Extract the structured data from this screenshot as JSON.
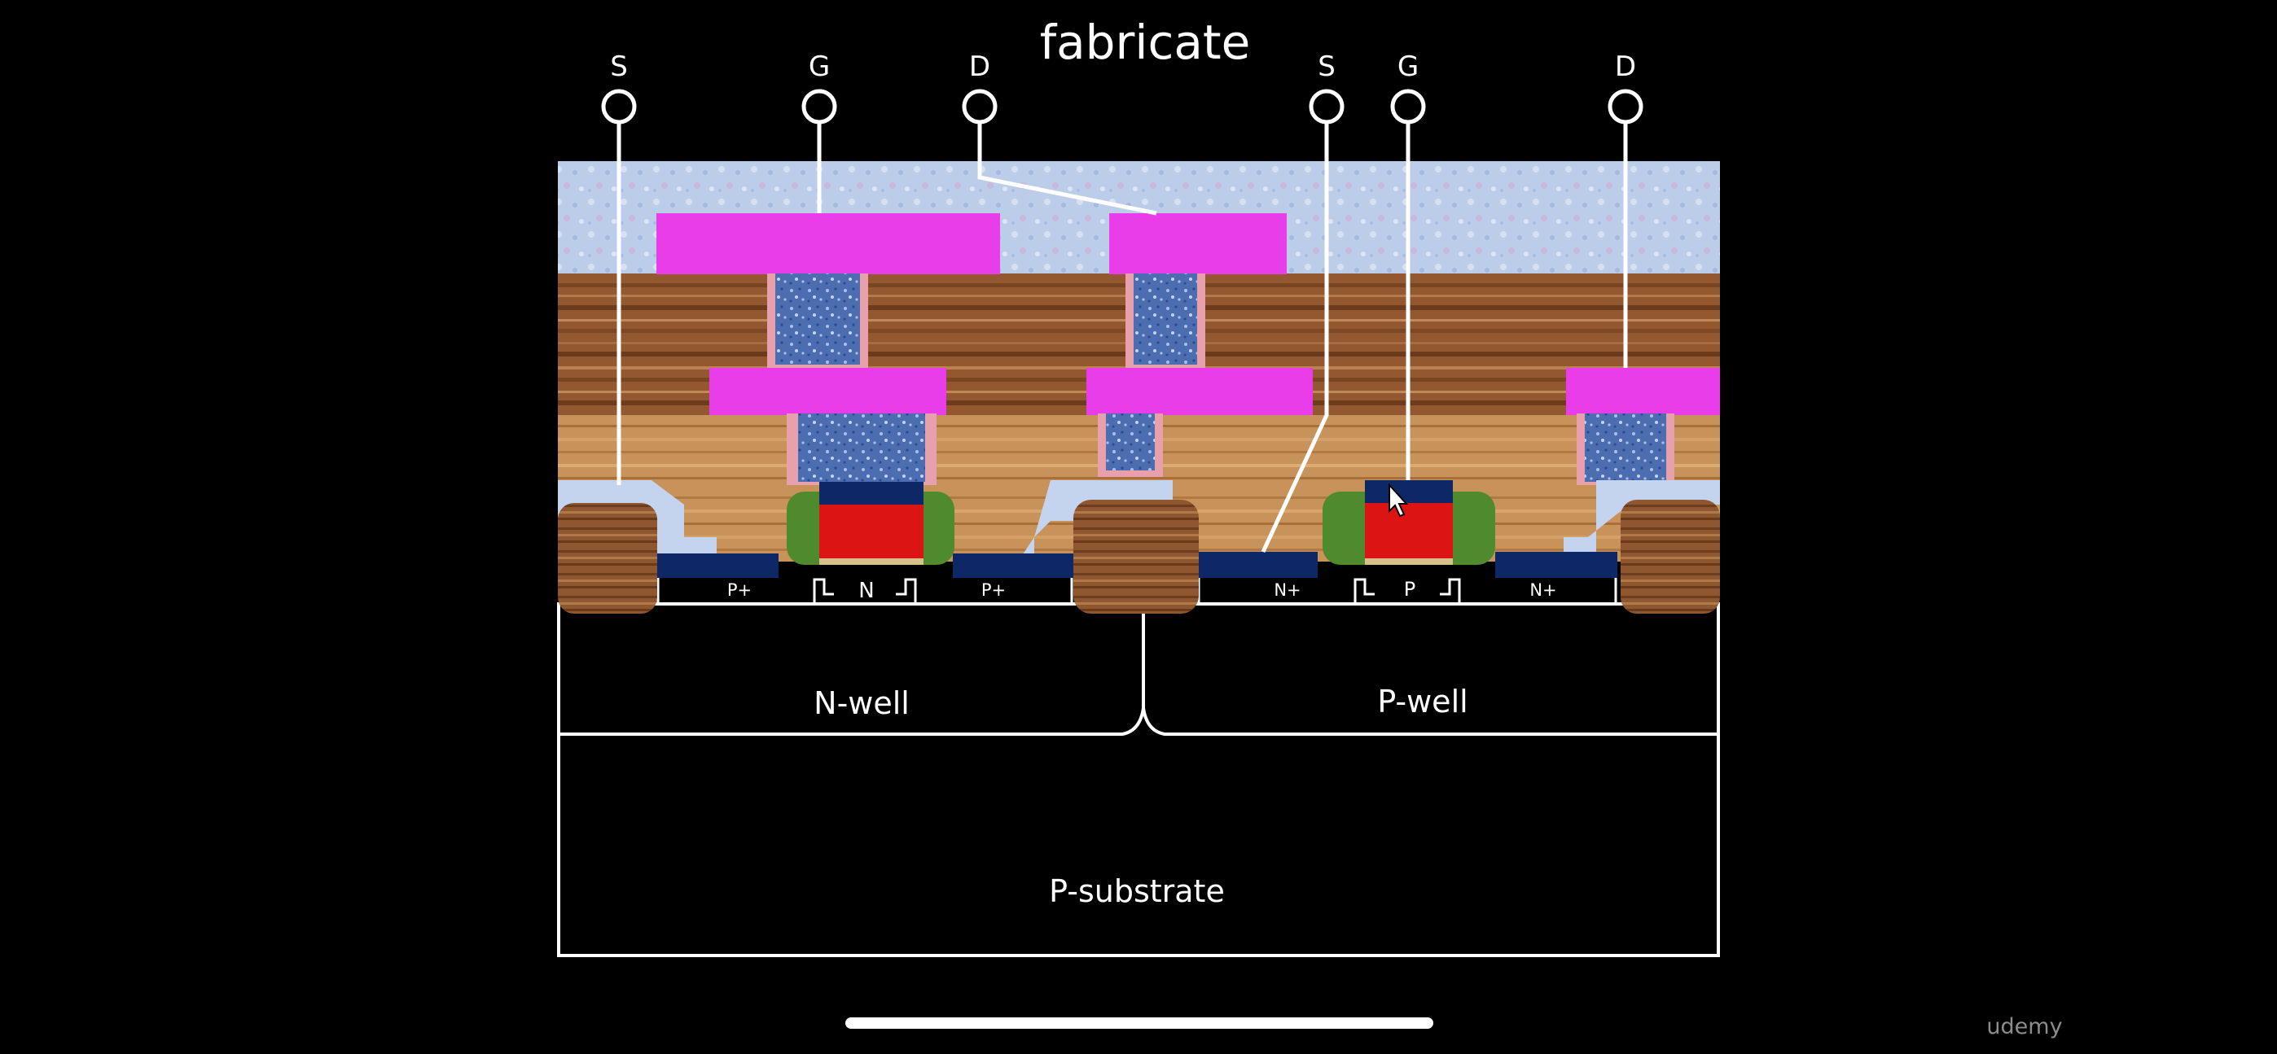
{
  "title": "fabricate",
  "pmos_terminals": {
    "source": "S",
    "gate": "G",
    "drain": "D"
  },
  "nmos_terminals": {
    "source": "S",
    "gate": "G",
    "drain": "D"
  },
  "pmos_regions": {
    "source": "P+",
    "channel": "N",
    "drain": "P+"
  },
  "nmos_regions": {
    "source": "N+",
    "channel": "P",
    "drain": "N+"
  },
  "wells": {
    "left": "N-well",
    "right": "P-well"
  },
  "substrate": "P-substrate",
  "watermark": "udemy",
  "colors": {
    "metal": "#e83de8",
    "via": "#5677b8",
    "oxide": "#b9cbeb",
    "dielectric": "#a8703c",
    "n_diffusion": "#0e2766",
    "poly_gate": "#dd1414",
    "spacer": "#4f8a2e",
    "gate_cap": "#0e2766",
    "wire": "#ffffff",
    "background": "#000000"
  }
}
